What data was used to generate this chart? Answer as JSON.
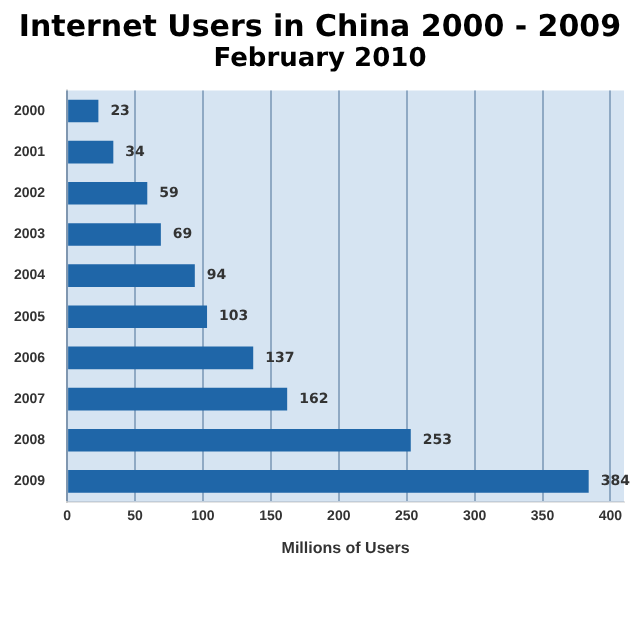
{
  "chart_data": {
    "type": "bar",
    "orientation": "horizontal",
    "title": "Internet Users in China 2000 - 2009",
    "subtitle": "February 2010",
    "xlabel": "Millions of Users",
    "categories": [
      "2000",
      "2001",
      "2002",
      "2003",
      "2004",
      "2005",
      "2006",
      "2007",
      "2008",
      "2009"
    ],
    "values": [
      23,
      34,
      59,
      69,
      94,
      103,
      137,
      162,
      253,
      384
    ],
    "color": "#1f66a8",
    "xlim": [
      0,
      410
    ],
    "xticks": [
      0,
      50,
      100,
      150,
      200,
      250,
      300,
      350,
      400
    ],
    "grid": "x",
    "data_labels": true
  }
}
